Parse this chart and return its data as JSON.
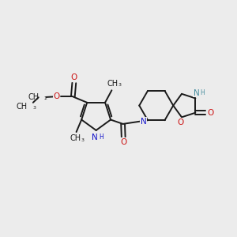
{
  "bg_color": "#ececec",
  "bond_color": "#1a1a1a",
  "n_color": "#1515cc",
  "o_color": "#cc1515",
  "nh_color": "#4a8fa0",
  "line_width": 1.4,
  "font_size": 7.5,
  "fig_w": 3.0,
  "fig_h": 3.0,
  "dpi": 100,
  "xlim": [
    0,
    10
  ],
  "ylim": [
    0,
    10
  ]
}
